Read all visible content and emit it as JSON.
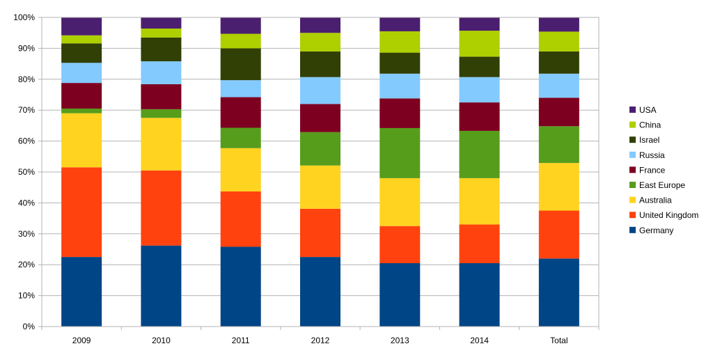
{
  "chart_data": {
    "type": "bar",
    "stacked": "percent",
    "categories": [
      "2009",
      "2010",
      "2011",
      "2012",
      "2013",
      "2014",
      "Total"
    ],
    "ylim": [
      0,
      100
    ],
    "yticks": [
      "0%",
      "10%",
      "20%",
      "30%",
      "40%",
      "50%",
      "60%",
      "70%",
      "80%",
      "90%",
      "100%"
    ],
    "grid": true,
    "legend_position": "right",
    "series": [
      {
        "name": "Germany",
        "color": "#004586",
        "values": [
          22.5,
          26.2,
          25.8,
          22.5,
          20.5,
          20.5,
          22.0
        ]
      },
      {
        "name": "United Kingdom",
        "color": "#ff420e",
        "values": [
          29.0,
          24.3,
          17.9,
          15.6,
          12.0,
          12.5,
          15.5
        ]
      },
      {
        "name": "Australia",
        "color": "#ffd320",
        "values": [
          17.5,
          17.0,
          14.0,
          14.0,
          15.5,
          15.0,
          15.4
        ]
      },
      {
        "name": "East Europe",
        "color": "#579d1c",
        "values": [
          1.5,
          2.8,
          6.6,
          10.8,
          16.2,
          15.3,
          11.9
        ]
      },
      {
        "name": "France",
        "color": "#7e0021",
        "values": [
          8.3,
          8.1,
          9.9,
          9.1,
          9.6,
          9.2,
          9.2
        ]
      },
      {
        "name": "Russia",
        "color": "#83caff",
        "values": [
          6.5,
          7.4,
          5.5,
          8.7,
          8.0,
          8.2,
          7.8
        ]
      },
      {
        "name": "Israel",
        "color": "#314004",
        "values": [
          6.3,
          7.7,
          10.3,
          8.3,
          6.8,
          6.6,
          7.2
        ]
      },
      {
        "name": "China",
        "color": "#aecf00",
        "values": [
          2.6,
          2.9,
          4.7,
          6.0,
          6.9,
          8.4,
          6.4
        ]
      },
      {
        "name": "USA",
        "color": "#4b1f6f",
        "values": [
          5.8,
          3.6,
          5.3,
          5.0,
          4.5,
          4.3,
          4.6
        ]
      }
    ]
  }
}
